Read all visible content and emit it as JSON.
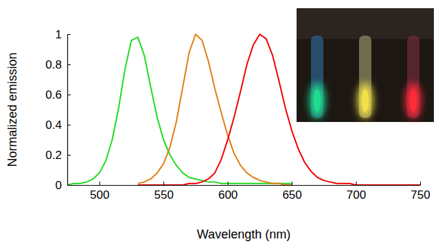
{
  "chart_data": {
    "type": "line",
    "x_label": "Wavelength (nm)",
    "y_label": "Normalized emission",
    "x": [
      475,
      480,
      485,
      490,
      495,
      500,
      505,
      510,
      515,
      520,
      525,
      530,
      535,
      540,
      545,
      550,
      555,
      560,
      565,
      570,
      575,
      580,
      585,
      590,
      595,
      600,
      605,
      610,
      615,
      620,
      625,
      630,
      635,
      640,
      645,
      650,
      655,
      660,
      665,
      670,
      675,
      680,
      685,
      690,
      695,
      700,
      705,
      710,
      715,
      720,
      725,
      730,
      735,
      740,
      745,
      750
    ],
    "series": [
      {
        "color": "#1fdc1f",
        "values": [
          0,
          0.01,
          0.01,
          0.02,
          0.04,
          0.08,
          0.16,
          0.3,
          0.51,
          0.77,
          0.96,
          0.98,
          0.86,
          0.65,
          0.45,
          0.3,
          0.2,
          0.13,
          0.08,
          0.05,
          0.04,
          0.03,
          0.02,
          0.02,
          0.01,
          0.01,
          0.01,
          0.01,
          0.01,
          0.01,
          0.01,
          0.01,
          0.01,
          0.01,
          0.01,
          0.01,
          null,
          null,
          null,
          null,
          null,
          null,
          null,
          null,
          null,
          null,
          null,
          null,
          null,
          null,
          null,
          null,
          null,
          null,
          null,
          null
        ]
      },
      {
        "color": "#e07d12",
        "values": [
          null,
          null,
          null,
          null,
          null,
          null,
          null,
          null,
          null,
          null,
          null,
          0.01,
          0.02,
          0.04,
          0.08,
          0.14,
          0.25,
          0.42,
          0.65,
          0.88,
          1.0,
          0.96,
          0.82,
          0.64,
          0.48,
          0.33,
          0.21,
          0.13,
          0.08,
          0.05,
          0.03,
          0.02,
          0.01,
          0.01,
          0,
          0,
          null,
          null,
          null,
          null,
          null,
          null,
          null,
          null,
          null,
          null,
          null,
          null,
          null,
          null,
          null,
          null,
          null,
          null,
          null,
          null
        ]
      },
      {
        "color": "#f00000",
        "values": [
          null,
          null,
          null,
          null,
          null,
          null,
          null,
          null,
          null,
          null,
          null,
          0,
          0,
          0,
          0,
          0,
          0,
          0,
          0,
          0.01,
          0.01,
          0.02,
          0.04,
          0.08,
          0.17,
          0.3,
          0.45,
          0.62,
          0.8,
          0.93,
          1.0,
          0.97,
          0.86,
          0.69,
          0.51,
          0.36,
          0.24,
          0.15,
          0.09,
          0.05,
          0.03,
          0.02,
          0.01,
          0.01,
          0.01,
          0,
          0,
          0,
          0,
          0,
          0,
          0,
          0,
          0,
          0,
          0
        ]
      }
    ],
    "xlim": [
      475,
      750
    ],
    "xticks": [
      500,
      550,
      600,
      650,
      700,
      750
    ],
    "ylim": [
      0,
      1
    ],
    "yticks": [
      0,
      0.2,
      0.4,
      0.6,
      0.8,
      1
    ],
    "grid": false
  }
}
